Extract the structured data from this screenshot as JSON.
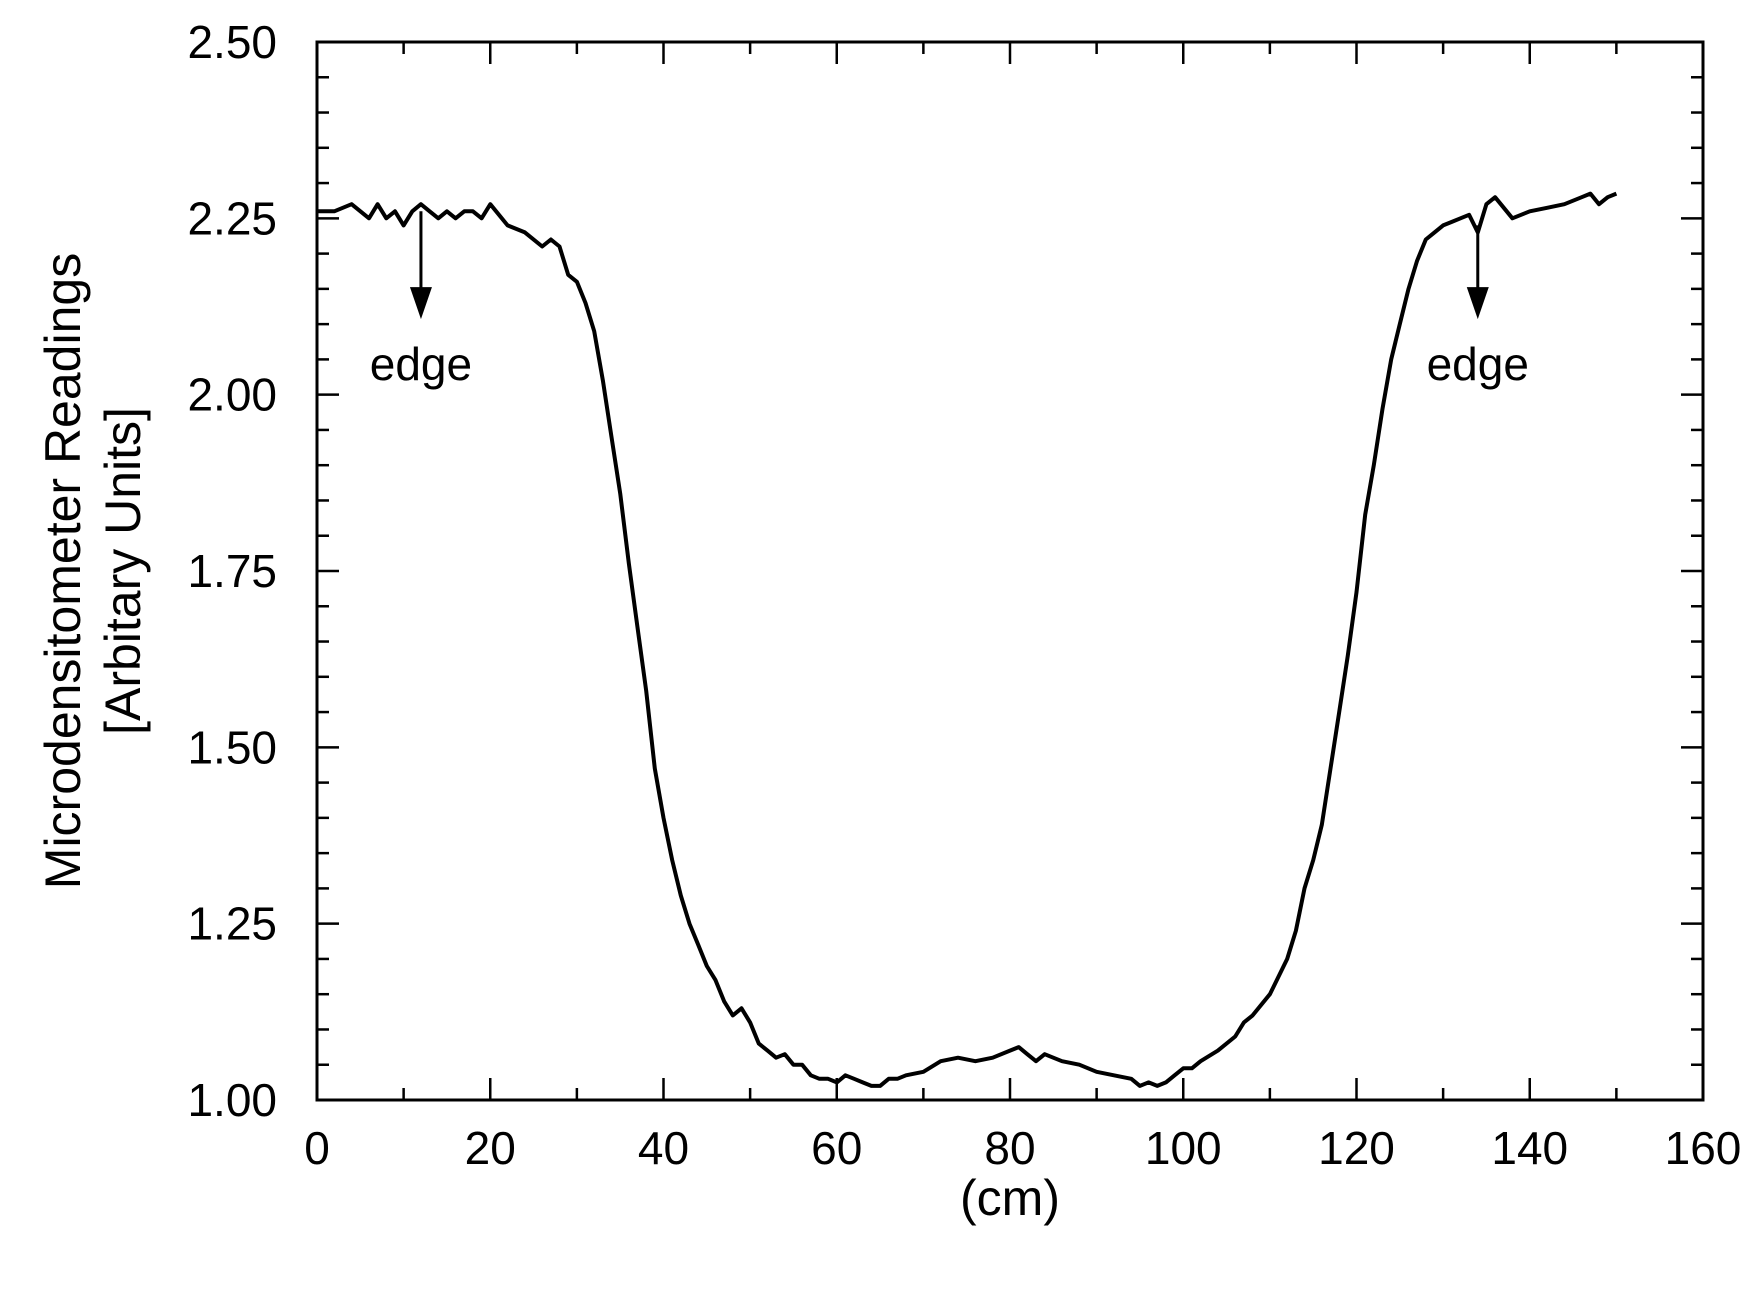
{
  "chart_data": {
    "type": "line",
    "title": "",
    "xlabel": "(cm)",
    "ylabel_lines": [
      "Microdensitometer Readings",
      "[Arbitary Units]"
    ],
    "xlim": [
      0,
      160
    ],
    "ylim": [
      1.0,
      2.5
    ],
    "xticks": [
      0,
      20,
      40,
      60,
      80,
      100,
      120,
      140,
      160
    ],
    "xtick_labels": [
      "0",
      "20",
      "40",
      "60",
      "80",
      "100",
      "120",
      "140",
      "160"
    ],
    "yticks": [
      1.0,
      1.25,
      1.5,
      1.75,
      2.0,
      2.25,
      2.5
    ],
    "ytick_labels": [
      "1.00",
      "1.25",
      "1.50",
      "1.75",
      "2.00",
      "2.25",
      "2.50"
    ],
    "x_minor_step": 10,
    "y_minor_step": 0.05,
    "grid": false,
    "legend": "none",
    "line_color": "#000000",
    "series": [
      {
        "x": [
          0,
          2,
          4,
          6,
          7,
          8,
          9,
          10,
          11,
          12,
          13,
          14,
          15,
          16,
          17,
          18,
          19,
          20,
          22,
          24,
          26,
          27,
          28,
          29,
          30,
          31,
          32,
          33,
          34,
          35,
          36,
          37,
          38,
          39,
          40,
          41,
          42,
          43,
          44,
          45,
          46,
          47,
          48,
          49,
          50,
          51,
          52,
          53,
          54,
          55,
          56,
          57,
          58,
          59,
          60,
          61,
          62,
          63,
          64,
          65,
          66,
          67,
          68,
          70,
          72,
          74,
          76,
          78,
          80,
          81,
          82,
          83,
          84,
          85,
          86,
          88,
          90,
          92,
          94,
          95,
          96,
          97,
          98,
          99,
          100,
          101,
          102,
          104,
          106,
          107,
          108,
          110,
          112,
          113,
          114,
          115,
          116,
          117,
          118,
          119,
          120,
          121,
          122,
          123,
          124,
          125,
          126,
          127,
          128,
          129,
          130,
          131,
          132,
          133,
          134,
          135,
          136,
          138,
          140,
          142,
          144,
          146,
          147,
          148,
          149,
          150
        ],
        "y": [
          2.26,
          2.26,
          2.27,
          2.25,
          2.27,
          2.25,
          2.26,
          2.24,
          2.26,
          2.27,
          2.26,
          2.25,
          2.26,
          2.25,
          2.26,
          2.26,
          2.25,
          2.27,
          2.24,
          2.23,
          2.21,
          2.22,
          2.21,
          2.17,
          2.16,
          2.13,
          2.09,
          2.02,
          1.94,
          1.86,
          1.76,
          1.67,
          1.58,
          1.47,
          1.4,
          1.34,
          1.29,
          1.25,
          1.22,
          1.19,
          1.17,
          1.14,
          1.12,
          1.13,
          1.11,
          1.08,
          1.07,
          1.06,
          1.065,
          1.05,
          1.05,
          1.035,
          1.03,
          1.03,
          1.025,
          1.035,
          1.03,
          1.025,
          1.02,
          1.02,
          1.03,
          1.03,
          1.035,
          1.04,
          1.055,
          1.06,
          1.055,
          1.06,
          1.07,
          1.075,
          1.065,
          1.055,
          1.065,
          1.06,
          1.055,
          1.05,
          1.04,
          1.035,
          1.03,
          1.02,
          1.025,
          1.02,
          1.025,
          1.035,
          1.045,
          1.045,
          1.055,
          1.07,
          1.09,
          1.11,
          1.12,
          1.15,
          1.2,
          1.24,
          1.3,
          1.34,
          1.39,
          1.47,
          1.55,
          1.63,
          1.72,
          1.83,
          1.9,
          1.98,
          2.05,
          2.1,
          2.15,
          2.19,
          2.22,
          2.23,
          2.24,
          2.245,
          2.25,
          2.255,
          2.23,
          2.27,
          2.28,
          2.25,
          2.26,
          2.265,
          2.27,
          2.28,
          2.285,
          2.27,
          2.28,
          2.285
        ]
      }
    ],
    "annotations": [
      {
        "text": "edge",
        "x": 12,
        "y_from": 2.26,
        "y_to": 2.11
      },
      {
        "text": "edge",
        "x": 134,
        "y_from": 2.24,
        "y_to": 2.11
      }
    ]
  }
}
